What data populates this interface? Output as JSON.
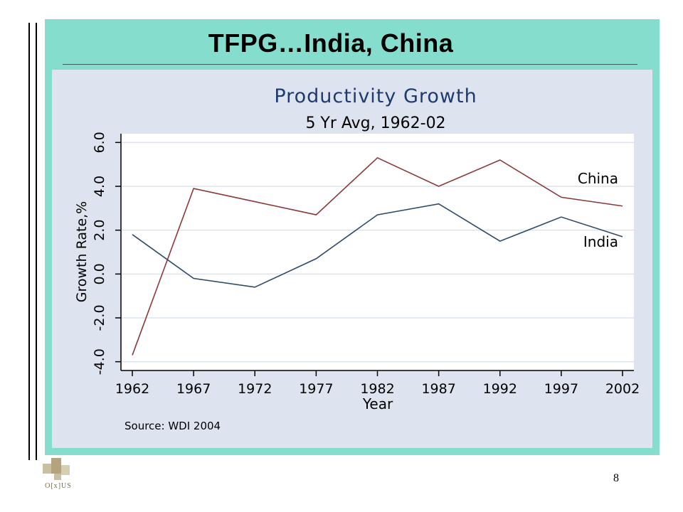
{
  "slide": {
    "title": "TFPG…India, China",
    "page_number": "8",
    "logo_text": "O[x]US"
  },
  "chart_data": {
    "type": "line",
    "title": "Productivity Growth",
    "subtitle": "5 Yr Avg, 1962-02",
    "xlabel": "Year",
    "ylabel": "Growth Rate,%",
    "source": "Source: WDI 2004",
    "x": [
      1962,
      1967,
      1972,
      1977,
      1982,
      1987,
      1992,
      1997,
      2002
    ],
    "x_tick_labels": [
      "1962",
      "1967",
      "1972",
      "1977",
      "1982",
      "1987",
      "1992",
      "1997",
      "2002"
    ],
    "y_ticks": [
      -4.0,
      -2.0,
      0.0,
      2.0,
      4.0,
      6.0
    ],
    "y_tick_labels": [
      "-4.0",
      "-2.0",
      "0.0",
      "2.0",
      "4.0",
      "6.0"
    ],
    "ylim": [
      -4.4,
      6.4
    ],
    "grid": true,
    "series": [
      {
        "name": "China",
        "color": "#8b3a3a",
        "values": [
          -3.7,
          3.9,
          3.3,
          2.7,
          5.3,
          4.0,
          5.2,
          3.5,
          3.1
        ]
      },
      {
        "name": "India",
        "color": "#2f4a6a",
        "values": [
          1.8,
          -0.2,
          -0.6,
          0.7,
          2.7,
          3.2,
          1.5,
          2.6,
          1.7
        ]
      }
    ]
  }
}
